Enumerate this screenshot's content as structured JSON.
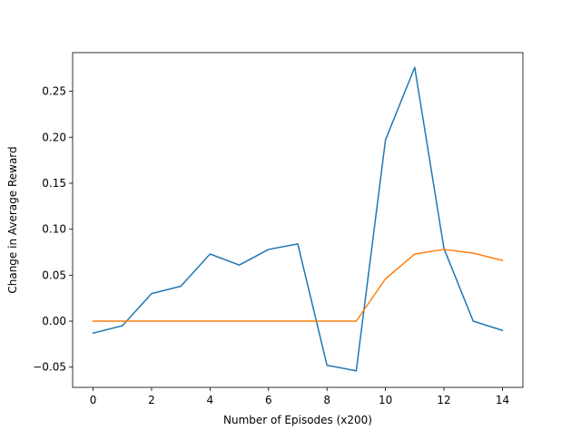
{
  "chart_data": {
    "type": "line",
    "title": "",
    "xlabel": "Number of Episodes (x200)",
    "ylabel": "Change in Average Reward",
    "xlim": [
      -0.7,
      14.7
    ],
    "ylim": [
      -0.072,
      0.292
    ],
    "xticks": [
      0,
      2,
      4,
      6,
      8,
      10,
      12,
      14
    ],
    "xtick_labels": [
      "0",
      "2",
      "4",
      "6",
      "8",
      "10",
      "12",
      "14"
    ],
    "yticks": [
      -0.05,
      0.0,
      0.05,
      0.1,
      0.15,
      0.2,
      0.25
    ],
    "ytick_labels": [
      "−0.05",
      "0.00",
      "0.05",
      "0.10",
      "0.15",
      "0.20",
      "0.25"
    ],
    "grid": false,
    "x": [
      0,
      1,
      2,
      3,
      4,
      5,
      6,
      7,
      8,
      9,
      10,
      11,
      12,
      13,
      14
    ],
    "series": [
      {
        "color": "#1f77b4",
        "values": [
          -0.013,
          -0.005,
          0.03,
          0.038,
          0.073,
          0.061,
          0.078,
          0.084,
          -0.048,
          -0.054,
          0.197,
          0.276,
          0.079,
          0.0,
          -0.01
        ]
      },
      {
        "color": "#ff7f0e",
        "values": [
          0.0,
          0.0,
          0.0,
          0.0,
          0.0,
          0.0,
          0.0,
          0.0,
          0.0,
          0.0,
          0.046,
          0.073,
          0.078,
          0.074,
          0.066
        ]
      }
    ]
  }
}
